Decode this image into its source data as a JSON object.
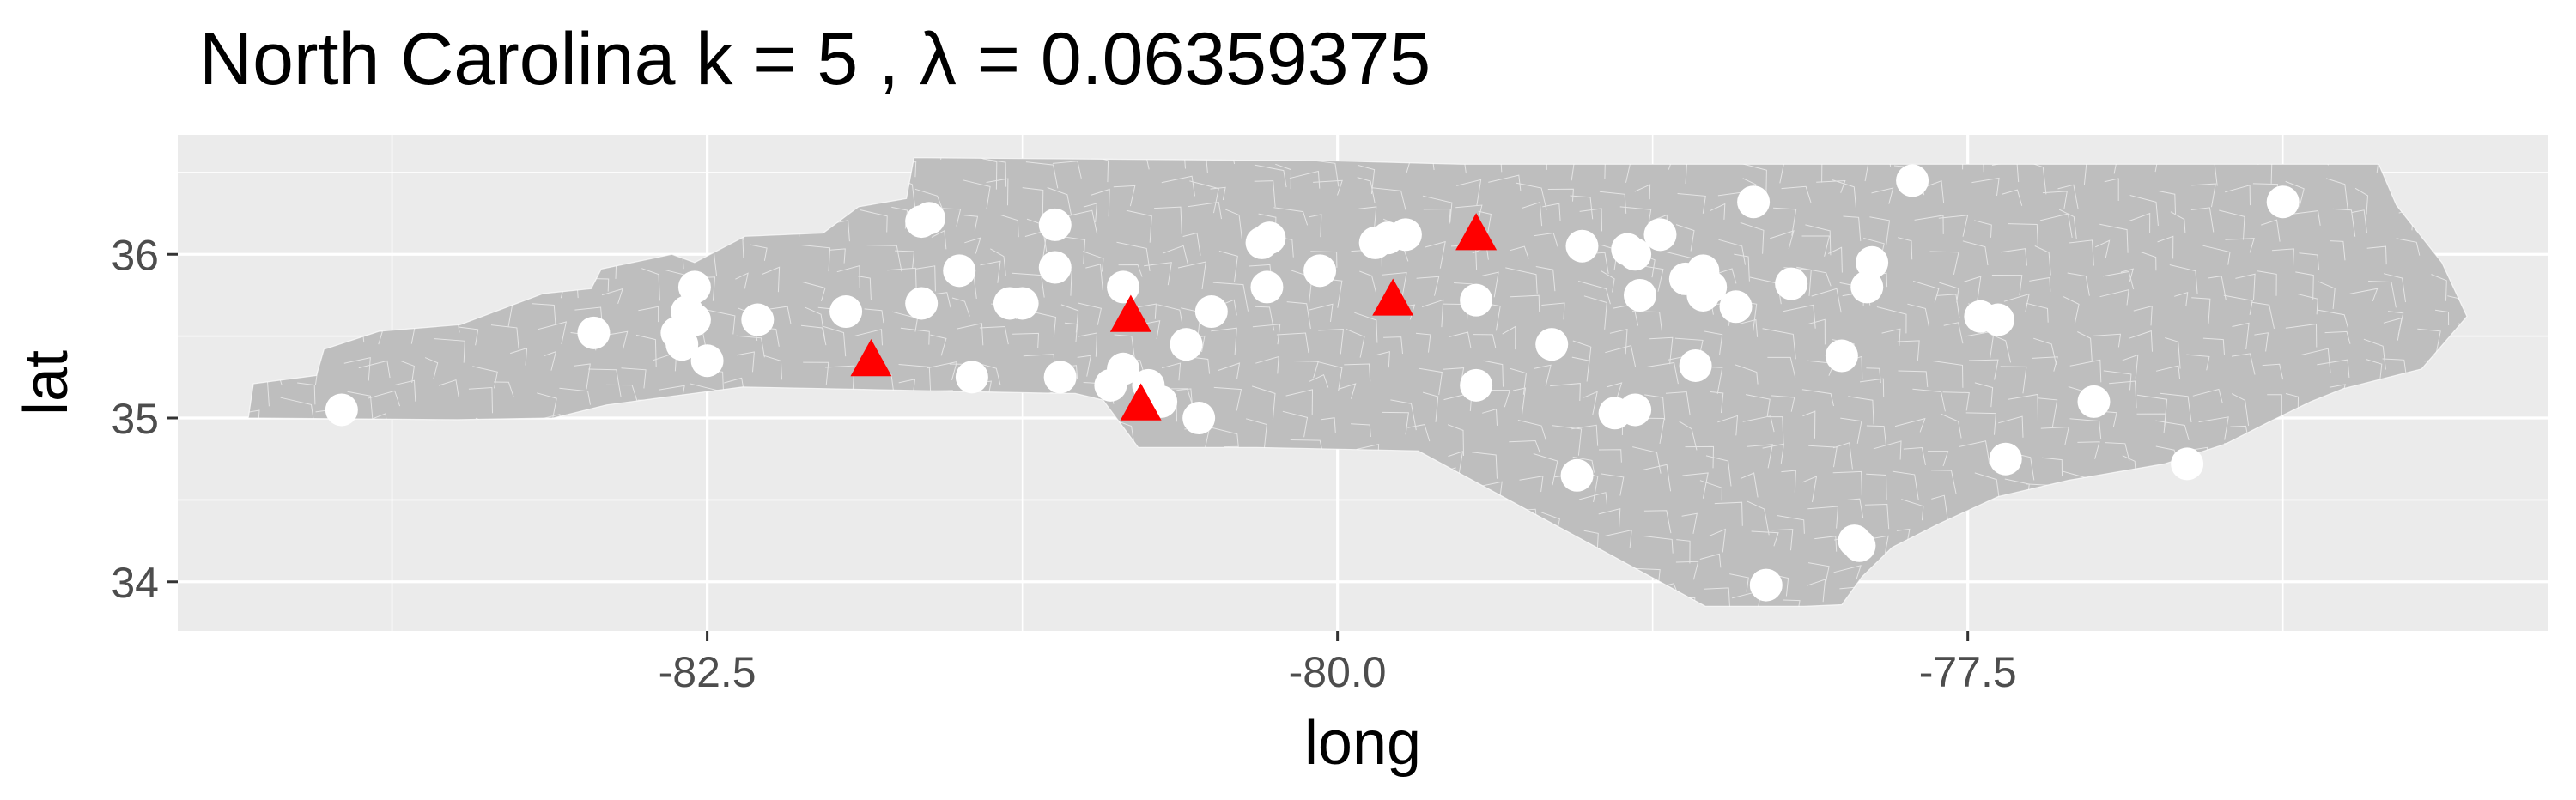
{
  "chart_data": {
    "type": "scatter",
    "title": "North Carolina  k =  5 ,  λ  =  0.06359375",
    "xlabel": "long",
    "ylabel": "lat",
    "xlim": [
      -84.6,
      -75.2
    ],
    "ylim": [
      33.7,
      36.73
    ],
    "x_ticks": [
      -82.5,
      -80.0,
      -77.5
    ],
    "x_tick_labels": [
      "-82.5",
      "-80.0",
      "-77.5"
    ],
    "y_ticks": [
      34,
      35,
      36
    ],
    "y_tick_labels": [
      "34",
      "35",
      "36"
    ],
    "grid": true,
    "legend": "none",
    "colors": {
      "panel": "#EBEBEB",
      "gridline": "#FFFFFF",
      "state_fill": "#BEBEBE",
      "district_border": "#FFFFFF",
      "points": "#FFFFFF",
      "centers": "#FF0000"
    },
    "state_outline": [
      [
        -84.32,
        35.0
      ],
      [
        -84.3,
        35.21
      ],
      [
        -84.05,
        35.26
      ],
      [
        -84.02,
        35.42
      ],
      [
        -83.8,
        35.53
      ],
      [
        -83.48,
        35.57
      ],
      [
        -83.15,
        35.76
      ],
      [
        -82.96,
        35.79
      ],
      [
        -82.92,
        35.91
      ],
      [
        -82.64,
        36.0
      ],
      [
        -82.55,
        35.95
      ],
      [
        -82.35,
        36.11
      ],
      [
        -82.04,
        36.13
      ],
      [
        -81.9,
        36.29
      ],
      [
        -81.71,
        36.34
      ],
      [
        -81.68,
        36.59
      ],
      [
        -80.0,
        36.57
      ],
      [
        -79.51,
        36.55
      ],
      [
        -78.8,
        36.55
      ],
      [
        -77.9,
        36.55
      ],
      [
        -76.92,
        36.55
      ],
      [
        -76.56,
        36.55
      ],
      [
        -76.0,
        36.55
      ],
      [
        -75.87,
        36.55
      ],
      [
        -75.8,
        36.3
      ],
      [
        -75.62,
        35.95
      ],
      [
        -75.52,
        35.62
      ],
      [
        -75.7,
        35.3
      ],
      [
        -76.01,
        35.18
      ],
      [
        -76.14,
        35.1
      ],
      [
        -76.3,
        34.98
      ],
      [
        -76.48,
        34.84
      ],
      [
        -76.72,
        34.72
      ],
      [
        -77.1,
        34.62
      ],
      [
        -77.38,
        34.52
      ],
      [
        -77.62,
        34.35
      ],
      [
        -77.8,
        34.21
      ],
      [
        -77.92,
        34.03
      ],
      [
        -78.0,
        33.86
      ],
      [
        -78.15,
        33.85
      ],
      [
        -78.54,
        33.85
      ],
      [
        -79.68,
        34.8
      ],
      [
        -80.32,
        34.82
      ],
      [
        -80.79,
        34.82
      ],
      [
        -80.93,
        35.11
      ],
      [
        -81.04,
        35.15
      ],
      [
        -81.09,
        35.15
      ],
      [
        -82.36,
        35.19
      ],
      [
        -82.9,
        35.08
      ],
      [
        -83.11,
        35.0
      ],
      [
        -83.49,
        34.99
      ],
      [
        -84.32,
        35.0
      ]
    ],
    "points": [
      {
        "x": -83.95,
        "y": 35.05
      },
      {
        "x": -82.95,
        "y": 35.52
      },
      {
        "x": -82.62,
        "y": 35.52
      },
      {
        "x": -82.55,
        "y": 35.6
      },
      {
        "x": -82.58,
        "y": 35.65
      },
      {
        "x": -82.55,
        "y": 35.8
      },
      {
        "x": -82.6,
        "y": 35.45
      },
      {
        "x": -82.5,
        "y": 35.35
      },
      {
        "x": -82.3,
        "y": 35.6
      },
      {
        "x": -81.95,
        "y": 35.65
      },
      {
        "x": -81.65,
        "y": 36.2
      },
      {
        "x": -81.62,
        "y": 36.22
      },
      {
        "x": -81.65,
        "y": 35.7
      },
      {
        "x": -81.5,
        "y": 35.9
      },
      {
        "x": -81.3,
        "y": 35.7
      },
      {
        "x": -81.25,
        "y": 35.7
      },
      {
        "x": -81.12,
        "y": 36.18
      },
      {
        "x": -81.12,
        "y": 35.92
      },
      {
        "x": -81.45,
        "y": 35.25
      },
      {
        "x": -81.1,
        "y": 35.25
      },
      {
        "x": -80.85,
        "y": 35.8
      },
      {
        "x": -80.85,
        "y": 35.3
      },
      {
        "x": -80.9,
        "y": 35.2
      },
      {
        "x": -80.75,
        "y": 35.2
      },
      {
        "x": -80.7,
        "y": 35.1
      },
      {
        "x": -80.6,
        "y": 35.45
      },
      {
        "x": -80.55,
        "y": 35.0
      },
      {
        "x": -80.5,
        "y": 35.65
      },
      {
        "x": -80.3,
        "y": 36.07
      },
      {
        "x": -80.27,
        "y": 36.1
      },
      {
        "x": -80.28,
        "y": 35.8
      },
      {
        "x": -80.07,
        "y": 35.9
      },
      {
        "x": -79.85,
        "y": 36.07
      },
      {
        "x": -79.8,
        "y": 36.1
      },
      {
        "x": -79.73,
        "y": 36.12
      },
      {
        "x": -79.45,
        "y": 35.72
      },
      {
        "x": -79.45,
        "y": 35.2
      },
      {
        "x": -79.15,
        "y": 35.45
      },
      {
        "x": -79.03,
        "y": 36.05
      },
      {
        "x": -78.85,
        "y": 36.03
      },
      {
        "x": -78.82,
        "y": 36.0
      },
      {
        "x": -78.72,
        "y": 36.12
      },
      {
        "x": -78.8,
        "y": 35.75
      },
      {
        "x": -78.62,
        "y": 35.85
      },
      {
        "x": -78.55,
        "y": 35.9
      },
      {
        "x": -78.52,
        "y": 35.8
      },
      {
        "x": -78.55,
        "y": 35.75
      },
      {
        "x": -78.42,
        "y": 35.68
      },
      {
        "x": -78.35,
        "y": 36.32
      },
      {
        "x": -78.2,
        "y": 35.82
      },
      {
        "x": -78.82,
        "y": 35.05
      },
      {
        "x": -78.9,
        "y": 35.03
      },
      {
        "x": -78.58,
        "y": 35.32
      },
      {
        "x": -79.05,
        "y": 34.65
      },
      {
        "x": -77.72,
        "y": 36.45
      },
      {
        "x": -77.88,
        "y": 35.95
      },
      {
        "x": -77.9,
        "y": 35.8
      },
      {
        "x": -78.0,
        "y": 35.38
      },
      {
        "x": -77.45,
        "y": 35.62
      },
      {
        "x": -77.38,
        "y": 35.6
      },
      {
        "x": -77.0,
        "y": 35.1
      },
      {
        "x": -77.35,
        "y": 34.75
      },
      {
        "x": -76.63,
        "y": 34.72
      },
      {
        "x": -77.95,
        "y": 34.25
      },
      {
        "x": -77.93,
        "y": 34.22
      },
      {
        "x": -78.3,
        "y": 33.98
      },
      {
        "x": -76.25,
        "y": 36.32
      }
    ],
    "centers": [
      {
        "x": -81.85,
        "y": 35.35
      },
      {
        "x": -80.82,
        "y": 35.62
      },
      {
        "x": -80.78,
        "y": 35.08
      },
      {
        "x": -79.78,
        "y": 35.72
      },
      {
        "x": -79.45,
        "y": 36.12
      }
    ]
  }
}
